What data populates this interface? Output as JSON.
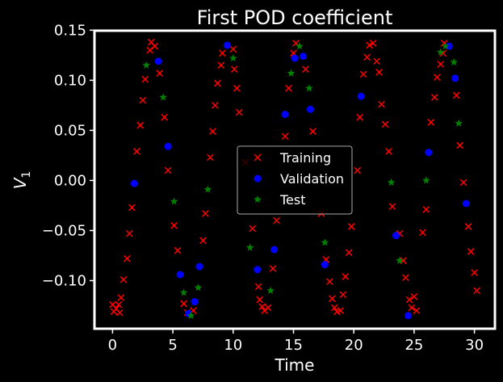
{
  "chart_data": {
    "type": "scatter",
    "title": "First POD coefficient",
    "xlabel": "Time",
    "ylabel_main": "V",
    "ylabel_sub": "1",
    "xlim": [
      -1.5,
      31.7
    ],
    "ylim": [
      -0.148,
      0.1495
    ],
    "xticks": [
      0,
      5,
      10,
      15,
      20,
      25,
      30
    ],
    "xtick_labels": [
      "0",
      "5",
      "10",
      "15",
      "20",
      "25",
      "30"
    ],
    "yticks": [
      -0.1,
      -0.05,
      0.0,
      0.05,
      0.1,
      0.15
    ],
    "ytick_labels": [
      "−0.10",
      "−0.05",
      "0.00",
      "0.05",
      "0.10",
      "0.15"
    ],
    "legend_position": "center",
    "series": [
      {
        "name": "Training",
        "marker": "x",
        "color": "#ff0000",
        "points": [
          [
            0.0,
            -0.124
          ],
          [
            0.1,
            -0.131
          ],
          [
            0.3,
            -0.128
          ],
          [
            0.5,
            -0.124
          ],
          [
            0.6,
            -0.132
          ],
          [
            0.7,
            -0.117
          ],
          [
            0.9,
            -0.099
          ],
          [
            1.2,
            -0.078
          ],
          [
            1.4,
            -0.053
          ],
          [
            1.6,
            -0.027
          ],
          [
            2.0,
            0.029
          ],
          [
            2.3,
            0.055
          ],
          [
            2.5,
            0.08
          ],
          [
            2.7,
            0.101
          ],
          [
            3.1,
            0.13
          ],
          [
            3.2,
            0.138
          ],
          [
            3.5,
            0.134
          ],
          [
            3.9,
            0.107
          ],
          [
            4.3,
            0.063
          ],
          [
            4.6,
            0.01
          ],
          [
            5.1,
            -0.045
          ],
          [
            5.4,
            -0.07
          ],
          [
            5.9,
            -0.123
          ],
          [
            6.2,
            -0.132
          ],
          [
            6.7,
            -0.13
          ],
          [
            7.5,
            -0.06
          ],
          [
            7.7,
            -0.033
          ],
          [
            8.1,
            0.023
          ],
          [
            8.3,
            0.049
          ],
          [
            8.5,
            0.075
          ],
          [
            8.7,
            0.097
          ],
          [
            9.0,
            0.115
          ],
          [
            9.1,
            0.127
          ],
          [
            10.0,
            0.131
          ],
          [
            10.1,
            0.111
          ],
          [
            10.3,
            0.092
          ],
          [
            10.5,
            0.068
          ],
          [
            11.0,
            0.018
          ],
          [
            11.6,
            -0.048
          ],
          [
            12.1,
            -0.106
          ],
          [
            12.2,
            -0.119
          ],
          [
            12.4,
            -0.126
          ],
          [
            12.6,
            -0.13
          ],
          [
            12.9,
            -0.127
          ],
          [
            13.3,
            -0.088
          ],
          [
            13.6,
            -0.04
          ],
          [
            14.3,
            0.044
          ],
          [
            14.6,
            0.092
          ],
          [
            15.0,
            0.127
          ],
          [
            15.2,
            0.137
          ],
          [
            16.0,
            0.111
          ],
          [
            16.6,
            0.049
          ],
          [
            17.3,
            -0.033
          ],
          [
            17.7,
            -0.079
          ],
          [
            18.0,
            -0.101
          ],
          [
            18.2,
            -0.118
          ],
          [
            18.4,
            -0.127
          ],
          [
            18.6,
            -0.131
          ],
          [
            18.9,
            -0.13
          ],
          [
            19.1,
            -0.114
          ],
          [
            19.3,
            -0.096
          ],
          [
            19.6,
            -0.072
          ],
          [
            19.8,
            -0.046
          ],
          [
            20.3,
            0.01
          ],
          [
            20.5,
            0.063
          ],
          [
            20.8,
            0.106
          ],
          [
            21.1,
            0.123
          ],
          [
            21.3,
            0.135
          ],
          [
            21.6,
            0.137
          ],
          [
            21.9,
            0.119
          ],
          [
            22.1,
            0.108
          ],
          [
            22.3,
            0.076
          ],
          [
            22.6,
            0.056
          ],
          [
            22.9,
            0.029
          ],
          [
            23.2,
            -0.026
          ],
          [
            23.8,
            -0.053
          ],
          [
            24.1,
            -0.08
          ],
          [
            24.3,
            -0.097
          ],
          [
            24.6,
            -0.119
          ],
          [
            24.8,
            -0.127
          ],
          [
            25.0,
            -0.116
          ],
          [
            25.2,
            -0.13
          ],
          [
            25.7,
            -0.052
          ],
          [
            26.0,
            -0.029
          ],
          [
            26.4,
            0.058
          ],
          [
            26.7,
            0.083
          ],
          [
            26.9,
            0.103
          ],
          [
            27.2,
            0.116
          ],
          [
            27.4,
            0.127
          ],
          [
            27.5,
            0.137
          ],
          [
            28.5,
            0.085
          ],
          [
            28.8,
            0.035
          ],
          [
            29.1,
            -0.002
          ],
          [
            29.5,
            -0.046
          ],
          [
            29.7,
            -0.071
          ],
          [
            30.0,
            -0.092
          ],
          [
            30.2,
            -0.11
          ]
        ]
      },
      {
        "name": "Validation",
        "marker": "o",
        "color": "#0000ff",
        "points": [
          [
            1.8,
            -0.003
          ],
          [
            3.8,
            0.119
          ],
          [
            4.6,
            0.034
          ],
          [
            5.6,
            -0.094
          ],
          [
            6.3,
            -0.133
          ],
          [
            6.8,
            -0.121
          ],
          [
            7.2,
            -0.086
          ],
          [
            9.5,
            0.135
          ],
          [
            12.0,
            -0.089
          ],
          [
            13.4,
            -0.069
          ],
          [
            14.3,
            0.066
          ],
          [
            15.1,
            0.122
          ],
          [
            15.8,
            0.124
          ],
          [
            16.4,
            0.071
          ],
          [
            17.6,
            -0.084
          ],
          [
            20.6,
            0.084
          ],
          [
            23.5,
            -0.055
          ],
          [
            24.5,
            -0.135
          ],
          [
            26.2,
            0.028
          ],
          [
            27.9,
            0.134
          ],
          [
            28.4,
            0.102
          ],
          [
            29.3,
            -0.023
          ]
        ]
      },
      {
        "name": "Test",
        "marker": "*",
        "color": "#008000",
        "points": [
          [
            2.8,
            0.115
          ],
          [
            4.2,
            0.083
          ],
          [
            5.1,
            -0.021
          ],
          [
            5.9,
            -0.112
          ],
          [
            6.5,
            -0.135
          ],
          [
            7.1,
            -0.107
          ],
          [
            7.9,
            -0.009
          ],
          [
            10.0,
            0.122
          ],
          [
            11.4,
            -0.067
          ],
          [
            13.1,
            -0.11
          ],
          [
            14.8,
            0.107
          ],
          [
            15.5,
            0.134
          ],
          [
            16.3,
            0.092
          ],
          [
            17.6,
            -0.062
          ],
          [
            23.1,
            -0.002
          ],
          [
            23.8,
            -0.08
          ],
          [
            26.0,
            0.0
          ],
          [
            27.2,
            0.128
          ],
          [
            27.6,
            0.134
          ],
          [
            28.3,
            0.118
          ],
          [
            28.7,
            0.057
          ]
        ]
      }
    ]
  }
}
